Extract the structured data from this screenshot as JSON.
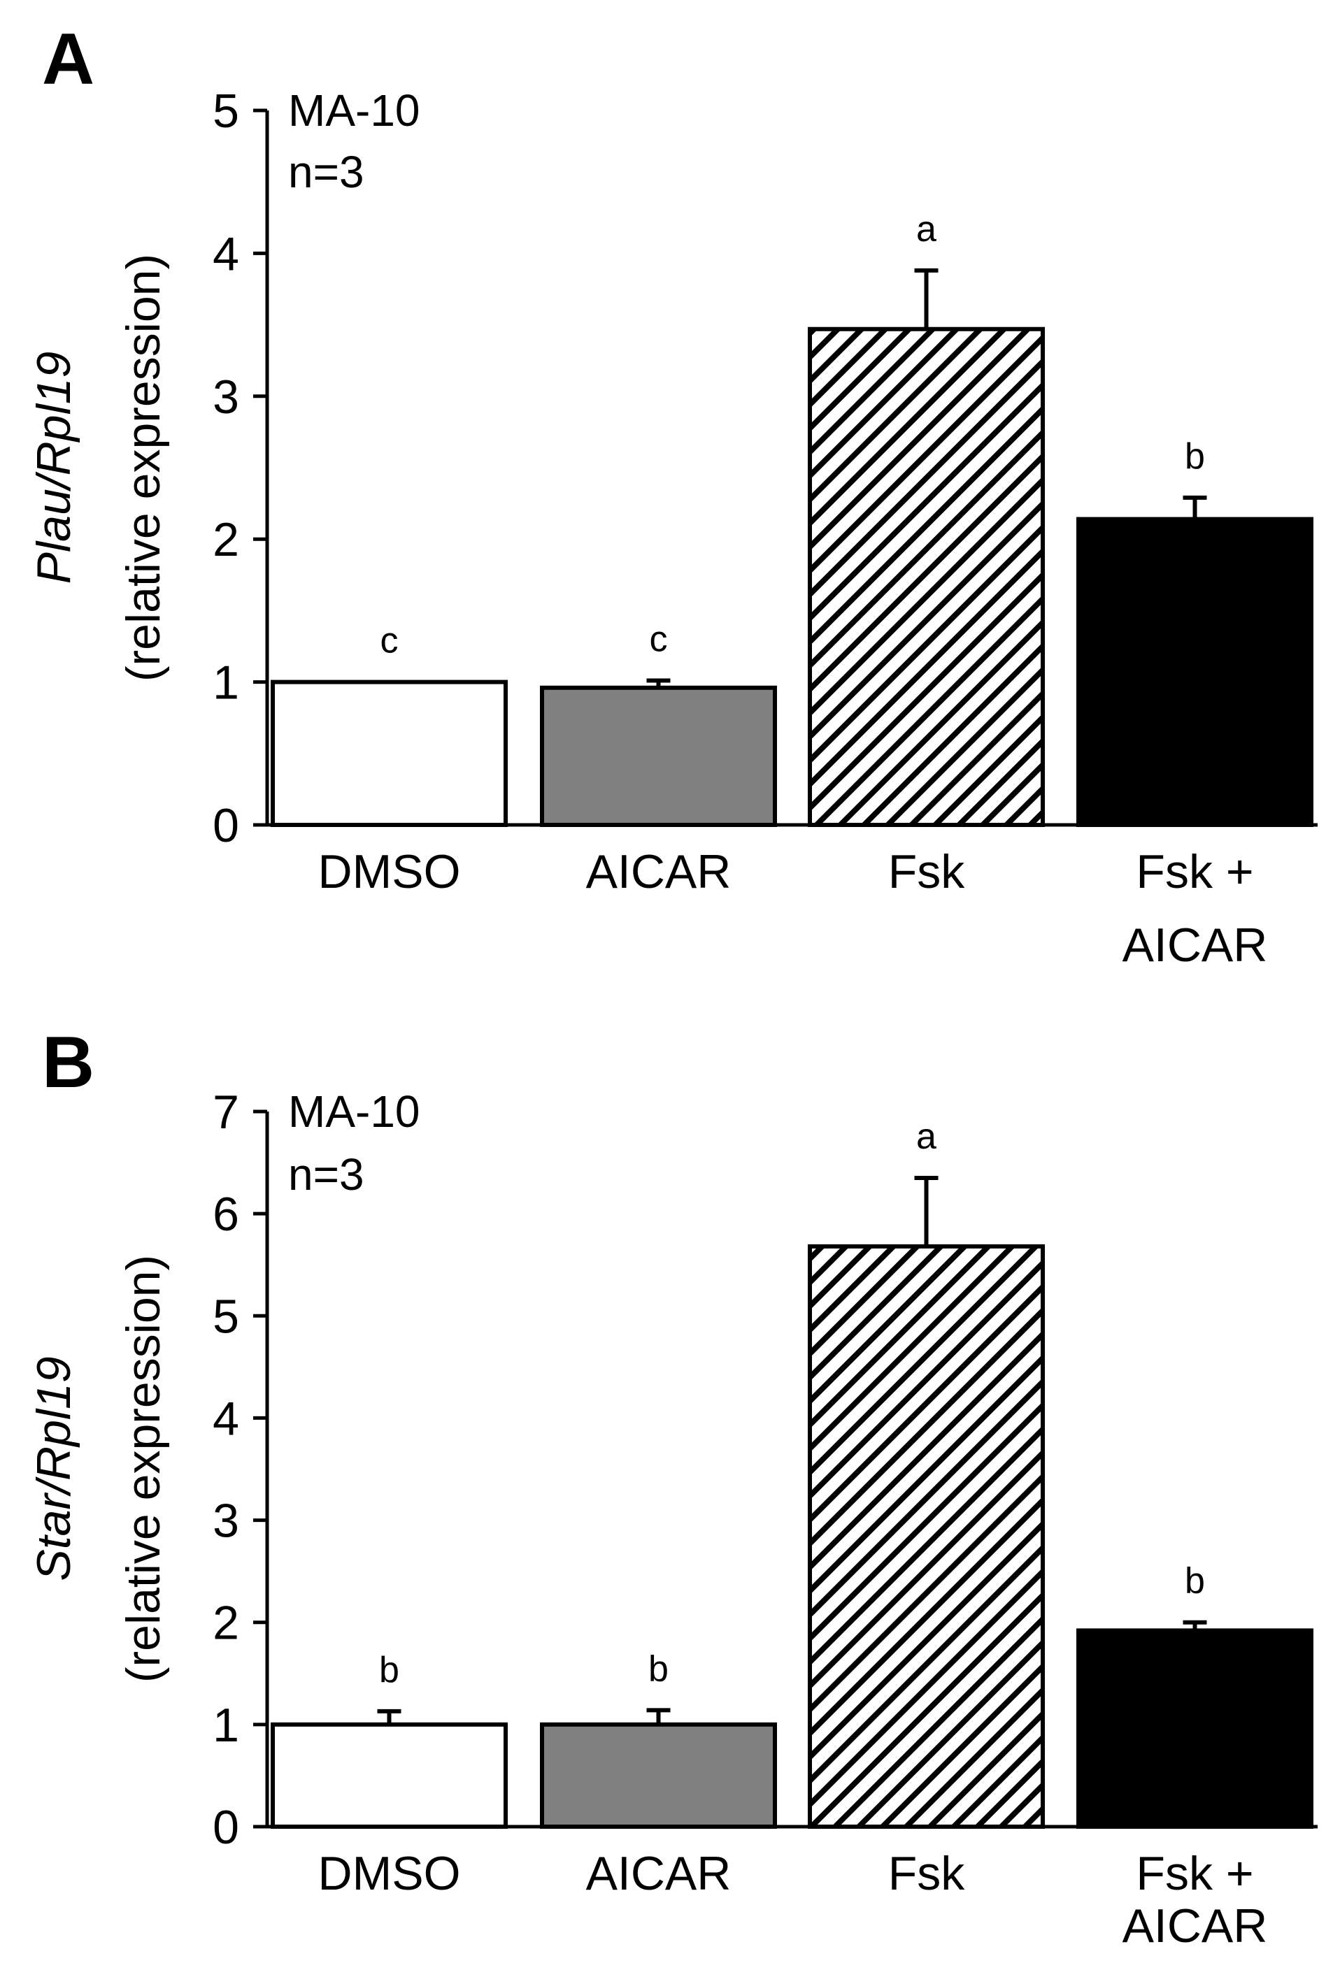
{
  "chart_data": [
    {
      "panel_label": "A",
      "type": "bar",
      "categories": [
        [
          "DMSO"
        ],
        [
          "AICAR"
        ],
        [
          "Fsk"
        ],
        [
          "Fsk +",
          "AICAR"
        ]
      ],
      "values": [
        1.0,
        0.96,
        3.47,
        2.14
      ],
      "errors": [
        0.0,
        0.05,
        0.41,
        0.15
      ],
      "significance": [
        "c",
        "c",
        "a",
        "b"
      ],
      "bar_styles": [
        "white",
        "gray",
        "hatched",
        "black"
      ],
      "ylabel_italic": "Plau/Rpl19",
      "ylabel_sub": "(relative expression)",
      "ylim": [
        0,
        5
      ],
      "yticks": [
        0,
        1,
        2,
        3,
        4,
        5
      ],
      "annotation": [
        "MA-10",
        "n=3"
      ],
      "grid": false,
      "legend": "none"
    },
    {
      "panel_label": "B",
      "type": "bar",
      "categories": [
        [
          "DMSO"
        ],
        [
          "AICAR"
        ],
        [
          "Fsk"
        ],
        [
          "Fsk +",
          "AICAR"
        ]
      ],
      "values": [
        1.0,
        1.0,
        5.68,
        1.92
      ],
      "errors": [
        0.13,
        0.14,
        0.67,
        0.08
      ],
      "significance": [
        "b",
        "b",
        "a",
        "b"
      ],
      "bar_styles": [
        "white",
        "gray",
        "hatched",
        "black"
      ],
      "ylabel_italic": "Star/Rpl19",
      "ylabel_sub": "(relative expression)",
      "ylim": [
        0,
        7
      ],
      "yticks": [
        0,
        1,
        2,
        3,
        4,
        5,
        6,
        7
      ],
      "annotation": [
        "MA-10",
        "n=3"
      ],
      "grid": false,
      "legend": "none"
    }
  ],
  "colors": {
    "white_bar": "#ffffff",
    "gray_bar": "#808080",
    "black_bar": "#000000",
    "stroke": "#000000"
  }
}
